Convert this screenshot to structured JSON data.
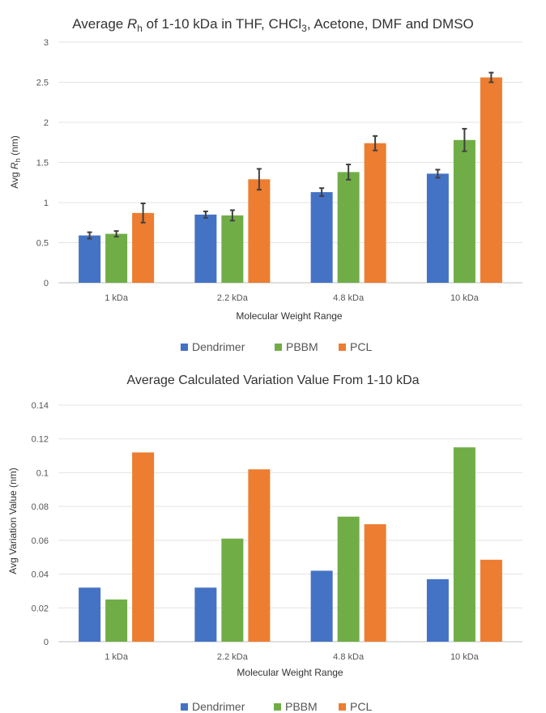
{
  "chart_data": [
    {
      "type": "bar",
      "title_parts": [
        "Average ",
        "R",
        "h",
        " of 1-10 kDa in THF, CHCl",
        "3",
        ", Acetone, DMF and DMSO"
      ],
      "xlabel": "Molecular Weight Range",
      "ylabel_parts": [
        "Avg ",
        "R",
        "h",
        " (nm)"
      ],
      "categories": [
        "1 kDa",
        "2.2 kDa",
        "4.8 kDa",
        "10 kDa"
      ],
      "ylim": [
        0,
        3
      ],
      "ytick_labels": [
        "0",
        "0.5",
        "1",
        "1.5",
        "2",
        "2.5",
        "3"
      ],
      "legend_position": "bottom",
      "grid": true,
      "series": [
        {
          "name": "Dendrimer",
          "color": "#4472C4",
          "values": [
            0.59,
            0.85,
            1.13,
            1.36
          ],
          "errors": [
            0.04,
            0.04,
            0.05,
            0.05
          ]
        },
        {
          "name": "PBBM",
          "color": "#70AD47",
          "values": [
            0.61,
            0.84,
            1.38,
            1.78
          ],
          "errors": [
            0.035,
            0.065,
            0.095,
            0.14
          ]
        },
        {
          "name": "PCL",
          "color": "#ED7D31",
          "values": [
            0.87,
            1.29,
            1.74,
            2.56
          ],
          "errors": [
            0.12,
            0.13,
            0.09,
            0.06
          ]
        }
      ]
    },
    {
      "type": "bar",
      "title": "Average Calculated Variation Value From 1-10 kDa",
      "xlabel": "Molecular Weight Range",
      "ylabel": "Avg Variation Value (nm)",
      "categories": [
        "1 kDa",
        "2.2 kDa",
        "4.8 kDa",
        "10 kDa"
      ],
      "ylim": [
        0,
        0.14
      ],
      "ytick_labels": [
        "0",
        "0.02",
        "0.04",
        "0.06",
        "0.08",
        "0.1",
        "0.12",
        "0.14"
      ],
      "legend_position": "bottom",
      "grid": true,
      "series": [
        {
          "name": "Dendrimer",
          "color": "#4472C4",
          "values": [
            0.032,
            0.032,
            0.042,
            0.037
          ]
        },
        {
          "name": "PBBM",
          "color": "#70AD47",
          "values": [
            0.025,
            0.061,
            0.074,
            0.115
          ]
        },
        {
          "name": "PCL",
          "color": "#ED7D31",
          "values": [
            0.112,
            0.102,
            0.0695,
            0.0485
          ]
        }
      ]
    }
  ]
}
